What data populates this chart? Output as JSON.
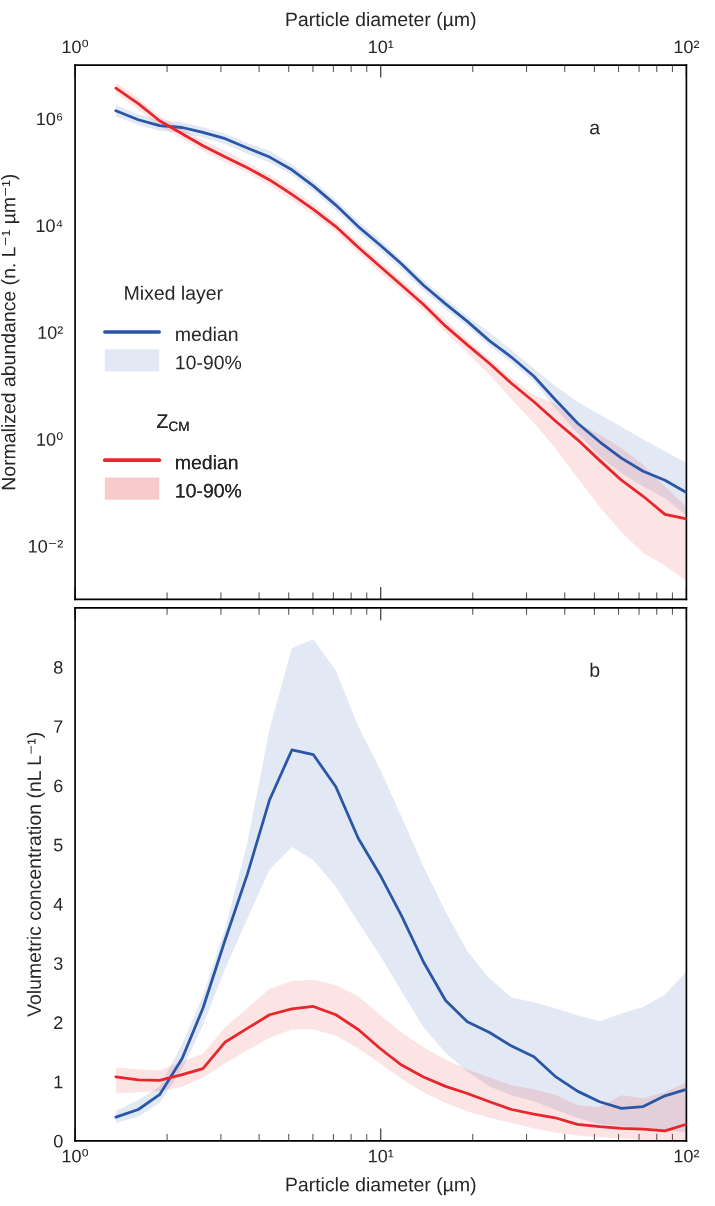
{
  "chart_data": [
    {
      "type": "line",
      "xlabel": "Particle diameter (µm)",
      "ylabel": "Normalized abundance (n. L⁻¹ µm⁻¹)",
      "log": "xy",
      "legend": "left",
      "legend_title": [
        "Mixed layer",
        "Z$_{CM}$"
      ],
      "xlim": [
        1,
        100
      ],
      "xticks": [
        {
          "value": 1,
          "label": "10⁰"
        },
        {
          "value": 10,
          "label": "10¹"
        },
        {
          "value": 100,
          "label": "10²"
        }
      ],
      "ylim": [
        0.001,
        10000000
      ],
      "yticks": [
        {
          "value": 0.01,
          "label": "10⁻²"
        },
        {
          "value": 1,
          "label": "10⁰"
        },
        {
          "value": 100,
          "label": "10²"
        },
        {
          "value": 10000,
          "label": "10⁴"
        },
        {
          "value": 1000000,
          "label": "10⁶"
        }
      ],
      "x": [
        1.36,
        1.61,
        1.89,
        2.24,
        2.62,
        3.1,
        3.66,
        4.33,
        5.12,
        6.02,
        7.13,
        8.44,
        9.95,
        11.7,
        13.8,
        16.3,
        19.2,
        22.7,
        26.8,
        31.7,
        37.2,
        44.0,
        52.0,
        61.3,
        72.2,
        85.1,
        100
      ],
      "annotations": [
        "a",
        "10-90%",
        "10-90%"
      ],
      "series": [
        {
          "name": "median",
          "color": "#2a56a8",
          "values": [
            1400000.0,
            950000.0,
            740000.0,
            680000.0,
            550000.0,
            420000.0,
            280000.0,
            190000.0,
            110000.0,
            55000.0,
            24000.0,
            9500.0,
            4300.0,
            1900.0,
            760,
            340,
            160,
            69,
            34,
            15,
            5.5,
            2.0,
            0.89,
            0.44,
            0.25,
            0.17,
            0.1
          ],
          "lower": [
            1100000.0,
            760000.0,
            590000.0,
            540000.0,
            440000.0,
            330000.0,
            220000.0,
            150000.0,
            89000.0,
            44000.0,
            19000.0,
            7600.0,
            3400.0,
            1500.0,
            600,
            270,
            130,
            55,
            27,
            12,
            3.8,
            1.3,
            0.48,
            0.23,
            0.13,
            0.078,
            0.037
          ],
          "upper": [
            1800000.0,
            1200000.0,
            930000.0,
            850000.0,
            690000.0,
            520000.0,
            350000.0,
            250000.0,
            140000.0,
            69000.0,
            30000.0,
            12000.0,
            5400.0,
            2300.0,
            950,
            430,
            200,
            100,
            46,
            21,
            10,
            5.0,
            2.9,
            1.7,
            0.98,
            0.59,
            0.36
          ]
        },
        {
          "name": "median",
          "color": "#e8262b",
          "values": [
            3700000.0,
            1900000.0,
            910000.0,
            520000.0,
            310000.0,
            190000.0,
            120000.0,
            71000.0,
            38000.0,
            20000.0,
            9500.0,
            3900.0,
            1700.0,
            760,
            330,
            130,
            58,
            26,
            11,
            5.0,
            2.2,
            0.98,
            0.4,
            0.17,
            0.085,
            0.039,
            0.032
          ],
          "lower": [
            3000000.0,
            1500000.0,
            720000.0,
            420000.0,
            250000.0,
            150000.0,
            98000.0,
            56000.0,
            30000.0,
            16000.0,
            7600.0,
            3100.0,
            1300.0,
            600,
            260,
            100,
            41,
            16,
            5.5,
            2.0,
            0.68,
            0.19,
            0.054,
            0.018,
            0.0074,
            0.0043,
            0.0022
          ],
          "upper": [
            4700000.0,
            2400000.0,
            1100000.0,
            660000.0,
            390000.0,
            250000.0,
            150000.0,
            89000.0,
            48000.0,
            25000.0,
            12000.0,
            4900.0,
            2100.0,
            950,
            420,
            170,
            72,
            32,
            14,
            6.6,
            4.6,
            2.0,
            1.2,
            0.68,
            0.33,
            0.13,
            0.054
          ]
        }
      ]
    },
    {
      "type": "line",
      "xlabel": "Particle diameter (µm)",
      "ylabel": "Volumetric concentration (nL L⁻¹)",
      "log": "x",
      "xlim": [
        1,
        100
      ],
      "xticks": [
        {
          "value": 1,
          "label": "10⁰"
        },
        {
          "value": 10,
          "label": "10¹"
        },
        {
          "value": 100,
          "label": "10²"
        }
      ],
      "ylim": [
        0,
        9
      ],
      "yticks": [
        0,
        1,
        2,
        3,
        4,
        5,
        6,
        7,
        8
      ],
      "x": [
        1.36,
        1.61,
        1.89,
        2.24,
        2.62,
        3.1,
        3.66,
        4.33,
        5.12,
        6.02,
        7.13,
        8.44,
        9.95,
        11.7,
        13.8,
        16.3,
        19.2,
        22.7,
        26.8,
        31.7,
        37.2,
        44.0,
        52.0,
        61.3,
        72.2,
        85.1,
        100
      ],
      "annotations": [
        "b"
      ],
      "series": [
        {
          "color": "#2a56a8",
          "values": [
            0.4,
            0.53,
            0.78,
            1.39,
            2.24,
            3.4,
            4.5,
            5.76,
            6.6,
            6.52,
            5.98,
            5.11,
            4.49,
            3.8,
            3.02,
            2.37,
            2.01,
            1.83,
            1.6,
            1.42,
            1.09,
            0.84,
            0.66,
            0.55,
            0.58,
            0.76,
            0.87
          ],
          "lower": [
            0.3,
            0.41,
            0.64,
            1.21,
            1.95,
            2.91,
            3.75,
            4.58,
            4.96,
            4.74,
            4.29,
            3.69,
            3.13,
            2.52,
            1.92,
            1.49,
            1.17,
            0.92,
            0.77,
            0.67,
            0.53,
            0.39,
            0.28,
            0.25,
            0.21,
            0.18,
            0.14
          ],
          "upper": [
            0.51,
            0.69,
            0.92,
            1.63,
            2.45,
            3.6,
            5.03,
            6.96,
            8.32,
            8.47,
            7.94,
            7.0,
            6.27,
            5.47,
            4.63,
            3.87,
            3.2,
            2.74,
            2.42,
            2.34,
            2.24,
            2.12,
            2.02,
            2.15,
            2.26,
            2.47,
            2.86
          ]
        },
        {
          "color": "#e8262b",
          "values": [
            1.08,
            1.03,
            1.02,
            1.12,
            1.22,
            1.67,
            1.9,
            2.13,
            2.23,
            2.27,
            2.13,
            1.88,
            1.56,
            1.28,
            1.08,
            0.92,
            0.8,
            0.66,
            0.53,
            0.45,
            0.39,
            0.28,
            0.24,
            0.21,
            0.2,
            0.17,
            0.28
          ],
          "lower": [
            0.8,
            0.82,
            0.84,
            0.91,
            1.07,
            1.31,
            1.53,
            1.74,
            1.88,
            1.88,
            1.78,
            1.56,
            1.31,
            1.05,
            0.82,
            0.64,
            0.5,
            0.39,
            0.3,
            0.21,
            0.14,
            0.09,
            0.06,
            0.04,
            0.02,
            0.01,
            0.01
          ],
          "upper": [
            1.24,
            1.21,
            1.19,
            1.34,
            1.47,
            1.92,
            2.24,
            2.57,
            2.7,
            2.72,
            2.63,
            2.44,
            2.13,
            1.83,
            1.58,
            1.37,
            1.21,
            1.07,
            0.94,
            0.87,
            0.78,
            0.6,
            0.57,
            0.77,
            0.72,
            0.82,
            0.99
          ]
        }
      ]
    }
  ]
}
